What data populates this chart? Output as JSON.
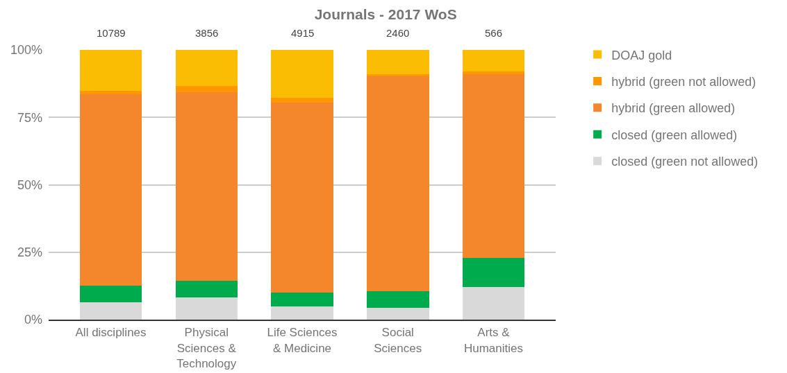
{
  "chart_data": {
    "type": "bar",
    "title": "Journals - 2017 WoS",
    "categories": [
      "All disciplines",
      "Physical Sciences & Technology",
      "Life Sciences & Medicine",
      "Social Sciences",
      "Arts & Humanities"
    ],
    "series": [
      {
        "name": "closed (green not allowed)",
        "color": "#d9d9d9",
        "values": [
          6.5,
          8.3,
          4.8,
          4.4,
          12.2
        ]
      },
      {
        "name": "closed (green allowed)",
        "color": "#00ab4e",
        "values": [
          6.2,
          6.1,
          5.2,
          6.1,
          10.6
        ]
      },
      {
        "name": "hybrid (green allowed)",
        "color": "#f4862b",
        "values": [
          70.9,
          70.0,
          70.5,
          79.8,
          68.2
        ]
      },
      {
        "name": "hybrid (green not allowed)",
        "color": "#ff9800",
        "values": [
          1.2,
          2.2,
          1.8,
          0.6,
          1.0
        ]
      },
      {
        "name": "DOAJ gold",
        "color": "#fbbc04",
        "values": [
          15.2,
          13.4,
          17.7,
          9.1,
          8.0
        ]
      }
    ],
    "stacked": true,
    "annotations": [
      {
        "text": "10789",
        "x": "All disciplines",
        "y": 100
      },
      {
        "text": "3856",
        "x": "Physical Sciences & Technology",
        "y": 100
      },
      {
        "text": "4915",
        "x": "Life Sciences & Medicine",
        "y": 100
      },
      {
        "text": "2460",
        "x": "Social Sciences",
        "y": 100
      },
      {
        "text": "566",
        "x": "Arts & Humanities",
        "y": 100
      }
    ],
    "ylim": [
      0,
      100
    ],
    "yticks": [
      {
        "value": 0,
        "label": "0%"
      },
      {
        "value": 25,
        "label": "25%"
      },
      {
        "value": 50,
        "label": "50%"
      },
      {
        "value": 75,
        "label": "75%"
      },
      {
        "value": 100,
        "label": "100%"
      }
    ],
    "grid": "y",
    "legend": "right"
  }
}
